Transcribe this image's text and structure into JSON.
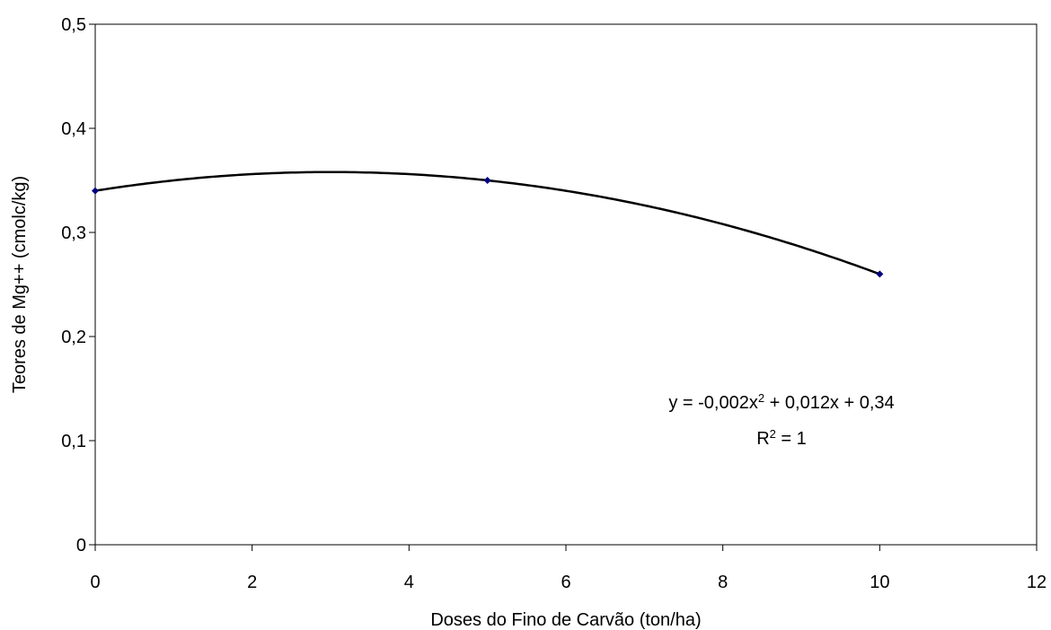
{
  "chart_data": {
    "type": "scatter",
    "x_label": "Doses do Fino de Carvão (ton/ha)",
    "y_label": "Teores de Mg++ (cmolc/kg)",
    "x": [
      0,
      5,
      10
    ],
    "values": [
      0.34,
      0.35,
      0.26
    ],
    "color": "#000080",
    "trendline_color": "#000000",
    "xlim": [
      0,
      12
    ],
    "xticks": [
      0,
      2,
      4,
      6,
      8,
      10,
      12
    ],
    "ylim": [
      0,
      0.5
    ],
    "yticks": [
      {
        "value": 0,
        "label": "0"
      },
      {
        "value": 0.1,
        "label": "0,1"
      },
      {
        "value": 0.2,
        "label": "0,2"
      },
      {
        "value": 0.3,
        "label": "0,3"
      },
      {
        "value": 0.4,
        "label": "0,4"
      },
      {
        "value": 0.5,
        "label": "0,5"
      }
    ],
    "equation": [
      "y = -0,002x",
      "2",
      " + 0,012x + 0,34"
    ],
    "r_squared": [
      "R",
      "2",
      " = 1"
    ]
  }
}
